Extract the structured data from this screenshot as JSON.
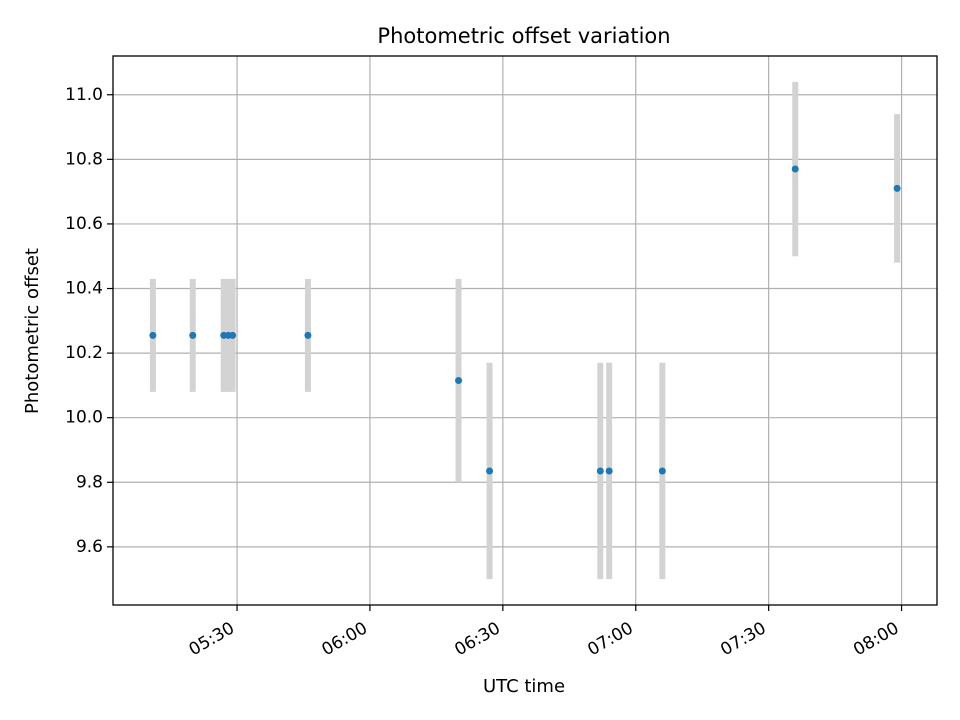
{
  "chart_data": {
    "type": "scatter",
    "title": "Photometric offset variation",
    "xlabel": "UTC time",
    "ylabel": "Photometric offset",
    "xlim": [
      "05:02",
      "08:08"
    ],
    "ylim": [
      9.42,
      11.12
    ],
    "grid": true,
    "x_ticks": [
      "05:30",
      "06:00",
      "06:30",
      "07:00",
      "07:30",
      "08:00"
    ],
    "y_ticks": [
      "9.6",
      "9.8",
      "10.0",
      "10.2",
      "10.4",
      "10.6",
      "10.8",
      "11.0"
    ],
    "series": [
      {
        "marker_color": "#1f77b4",
        "errorbar_color": "#d3d3d3",
        "points": [
          {
            "x": "05:11",
            "y": 10.255,
            "ylow": 10.08,
            "yhigh": 10.43
          },
          {
            "x": "05:20",
            "y": 10.255,
            "ylow": 10.08,
            "yhigh": 10.43
          },
          {
            "x": "05:27",
            "y": 10.255,
            "ylow": 10.08,
            "yhigh": 10.43
          },
          {
            "x": "05:28",
            "y": 10.255,
            "ylow": 10.08,
            "yhigh": 10.43
          },
          {
            "x": "05:29",
            "y": 10.255,
            "ylow": 10.08,
            "yhigh": 10.43
          },
          {
            "x": "05:46",
            "y": 10.255,
            "ylow": 10.08,
            "yhigh": 10.43
          },
          {
            "x": "06:20",
            "y": 10.115,
            "ylow": 9.8,
            "yhigh": 10.43
          },
          {
            "x": "06:27",
            "y": 9.835,
            "ylow": 9.5,
            "yhigh": 10.17
          },
          {
            "x": "06:52",
            "y": 9.835,
            "ylow": 9.5,
            "yhigh": 10.17
          },
          {
            "x": "06:54",
            "y": 9.835,
            "ylow": 9.5,
            "yhigh": 10.17
          },
          {
            "x": "07:06",
            "y": 9.835,
            "ylow": 9.5,
            "yhigh": 10.17
          },
          {
            "x": "07:36",
            "y": 10.77,
            "ylow": 10.5,
            "yhigh": 11.04
          },
          {
            "x": "07:59",
            "y": 10.71,
            "ylow": 10.48,
            "yhigh": 10.94
          }
        ]
      }
    ]
  }
}
